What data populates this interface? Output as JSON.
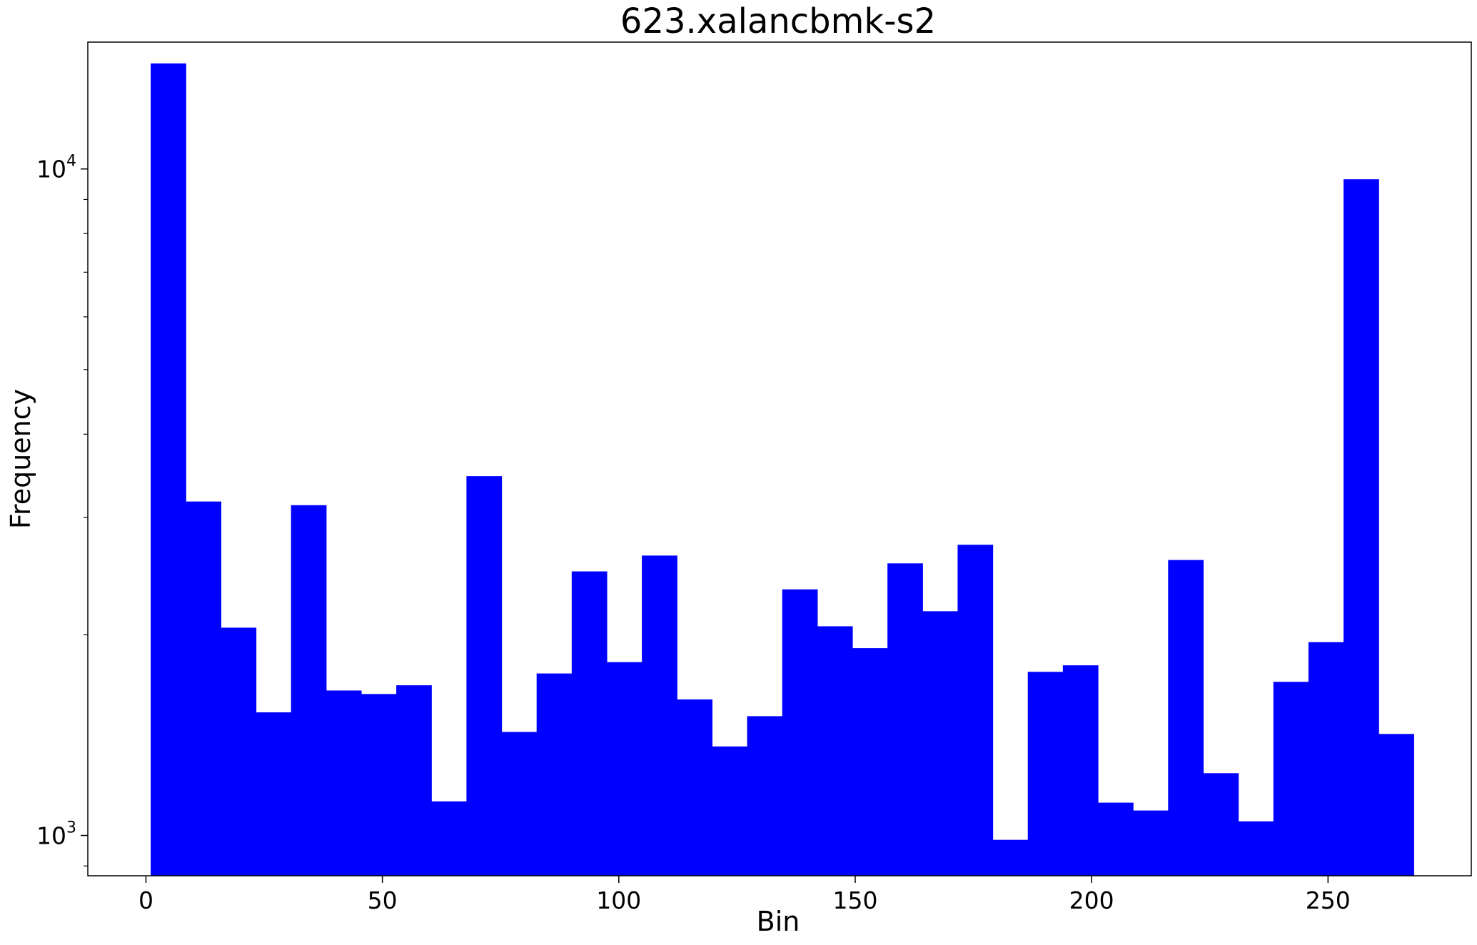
{
  "chart_data": {
    "type": "bar",
    "title": "623.xalancbmk-s2",
    "xlabel": "Bin",
    "ylabel": "Frequency",
    "y_scale": "log",
    "xlim": [
      -12.3,
      280.3
    ],
    "ylim": [
      870,
      15500
    ],
    "grid": false,
    "bar_color": "#0000ff",
    "bin_width": 7.42,
    "bins": [
      {
        "start": 1.0,
        "value": 14400
      },
      {
        "start": 8.42,
        "value": 3170
      },
      {
        "start": 15.84,
        "value": 2050
      },
      {
        "start": 23.26,
        "value": 1530
      },
      {
        "start": 30.68,
        "value": 3130
      },
      {
        "start": 38.1,
        "value": 1650
      },
      {
        "start": 45.52,
        "value": 1630
      },
      {
        "start": 52.94,
        "value": 1680
      },
      {
        "start": 60.36,
        "value": 1125
      },
      {
        "start": 67.78,
        "value": 3460
      },
      {
        "start": 75.2,
        "value": 1430
      },
      {
        "start": 82.62,
        "value": 1750
      },
      {
        "start": 90.04,
        "value": 2490
      },
      {
        "start": 97.46,
        "value": 1820
      },
      {
        "start": 104.88,
        "value": 2630
      },
      {
        "start": 112.3,
        "value": 1600
      },
      {
        "start": 119.72,
        "value": 1360
      },
      {
        "start": 127.14,
        "value": 1510
      },
      {
        "start": 134.56,
        "value": 2340
      },
      {
        "start": 141.98,
        "value": 2060
      },
      {
        "start": 149.4,
        "value": 1910
      },
      {
        "start": 156.82,
        "value": 2560
      },
      {
        "start": 164.24,
        "value": 2170
      },
      {
        "start": 171.66,
        "value": 2730
      },
      {
        "start": 179.08,
        "value": 985
      },
      {
        "start": 186.5,
        "value": 1760
      },
      {
        "start": 193.92,
        "value": 1800
      },
      {
        "start": 201.34,
        "value": 1120
      },
      {
        "start": 208.76,
        "value": 1090
      },
      {
        "start": 216.18,
        "value": 2590
      },
      {
        "start": 223.6,
        "value": 1240
      },
      {
        "start": 231.02,
        "value": 1050
      },
      {
        "start": 238.44,
        "value": 1700
      },
      {
        "start": 245.86,
        "value": 1950
      },
      {
        "start": 253.28,
        "value": 9650
      },
      {
        "start": 260.7,
        "value": 1420
      }
    ],
    "x_ticks": [
      {
        "value": 0,
        "label": "0"
      },
      {
        "value": 50,
        "label": "50"
      },
      {
        "value": 100,
        "label": "100"
      },
      {
        "value": 150,
        "label": "150"
      },
      {
        "value": 200,
        "label": "200"
      },
      {
        "value": 250,
        "label": "250"
      }
    ],
    "y_major_ticks": [
      {
        "value": 1000,
        "base": "10",
        "exp": "3"
      },
      {
        "value": 10000,
        "base": "10",
        "exp": "4"
      }
    ],
    "y_minor_ticks": [
      900,
      2000,
      3000,
      4000,
      5000,
      6000,
      7000,
      8000,
      9000
    ]
  }
}
